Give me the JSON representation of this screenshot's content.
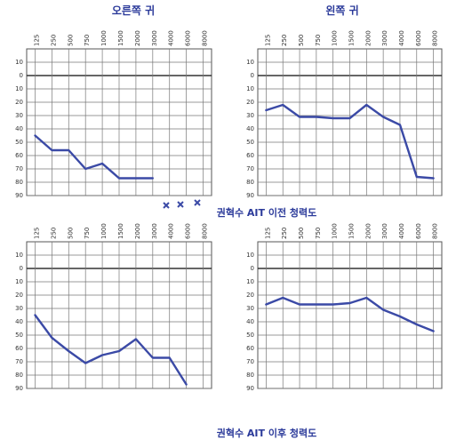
{
  "chart_data": [
    {
      "type": "line",
      "title": "오른쪽 귀",
      "categories": [
        "125",
        "250",
        "500",
        "750",
        "1000",
        "1500",
        "2000",
        "3000",
        "4000",
        "6000",
        "8000"
      ],
      "series": [
        {
          "color": "#3b4aa6",
          "values": [
            45,
            56,
            56,
            70,
            66,
            77,
            77,
            77,
            null,
            null,
            null
          ]
        }
      ],
      "ylim": [
        -20,
        90
      ],
      "yticks": [
        {
          "value": -10,
          "label": "10"
        },
        0,
        10,
        20,
        30,
        40,
        50,
        60,
        70,
        80,
        90
      ],
      "grid": true
    },
    {
      "type": "line",
      "title": "왼쪽 귀",
      "categories": [
        "125",
        "250",
        "500",
        "750",
        "1000",
        "1500",
        "2000",
        "3000",
        "4000",
        "6000",
        "8000"
      ],
      "series": [
        {
          "color": "#3b4aa6",
          "values": [
            26,
            22,
            31,
            31,
            32,
            32,
            22,
            31,
            37,
            76,
            77
          ]
        }
      ],
      "ylim": [
        -20,
        90
      ],
      "yticks": [
        {
          "value": -10,
          "label": "10"
        },
        0,
        10,
        20,
        30,
        40,
        50,
        60,
        70,
        80,
        90
      ],
      "grid": true
    },
    {
      "type": "line",
      "categories": [
        "125",
        "250",
        "500",
        "750",
        "1000",
        "1500",
        "2000",
        "3000",
        "4000",
        "6000",
        "8000"
      ],
      "series": [
        {
          "color": "#3b4aa6",
          "values": [
            35,
            52,
            62,
            71,
            65,
            62,
            53,
            67,
            67,
            87,
            null
          ]
        }
      ],
      "ylim": [
        -20,
        90
      ],
      "yticks": [
        {
          "value": -10,
          "label": "10"
        },
        0,
        10,
        20,
        30,
        40,
        50,
        60,
        70,
        80,
        90
      ],
      "grid": true
    },
    {
      "type": "line",
      "categories": [
        "125",
        "250",
        "500",
        "750",
        "1000",
        "1500",
        "2000",
        "3000",
        "4000",
        "6000",
        "8000"
      ],
      "series": [
        {
          "color": "#3b4aa6",
          "values": [
            27,
            22,
            27,
            27,
            27,
            26,
            22,
            31,
            36,
            42,
            47
          ]
        }
      ],
      "ylim": [
        -20,
        90
      ],
      "yticks": [
        {
          "value": -10,
          "label": "10"
        },
        0,
        10,
        20,
        30,
        40,
        50,
        60,
        70,
        80,
        90
      ],
      "grid": true
    }
  ],
  "captions": [
    "권혁수 AIT 이전 청력도",
    "권혁수 AIT 이후 청력도"
  ]
}
